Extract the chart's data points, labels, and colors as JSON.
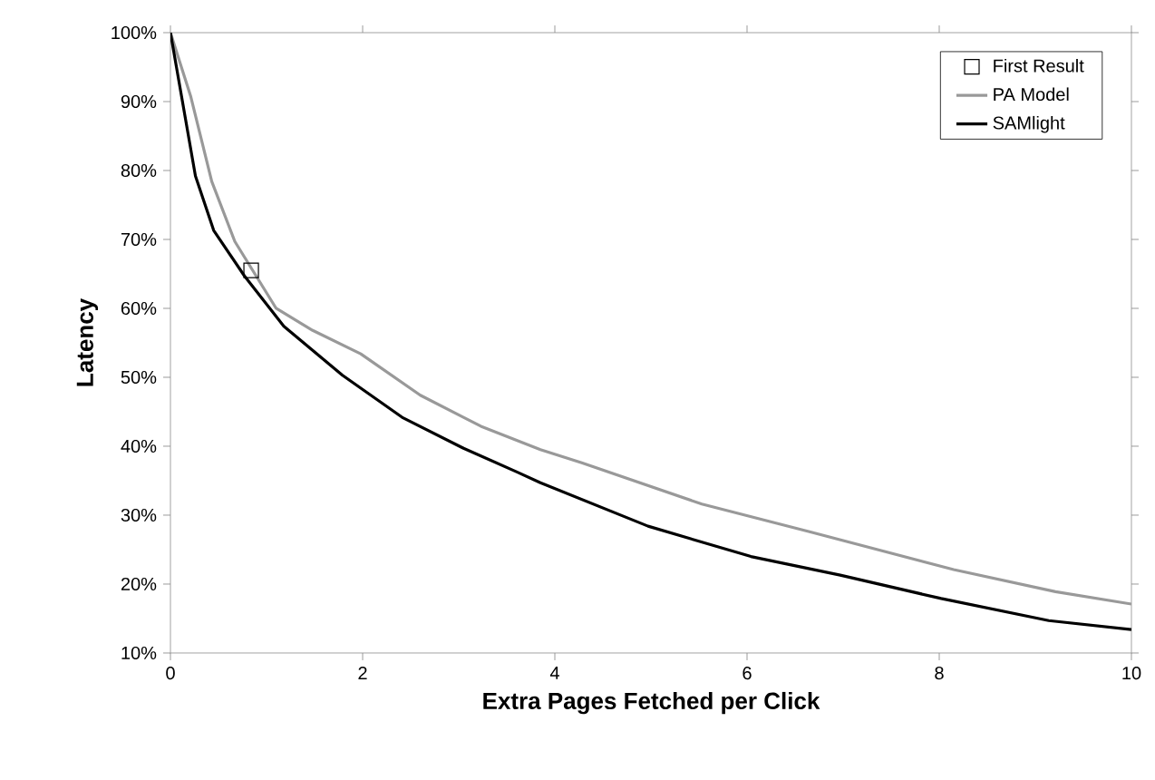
{
  "chart_data": {
    "type": "line",
    "xlabel": "Extra Pages Fetched per Click",
    "ylabel": "Latency",
    "xlim": [
      0,
      10
    ],
    "ylim": [
      10,
      100
    ],
    "xticks": [
      0,
      2,
      4,
      6,
      8,
      10
    ],
    "yticks": [
      {
        "value": 10,
        "label": "10%"
      },
      {
        "value": 20,
        "label": "20%"
      },
      {
        "value": 30,
        "label": "30%"
      },
      {
        "value": 40,
        "label": "40%"
      },
      {
        "value": 50,
        "label": "50%"
      },
      {
        "value": 60,
        "label": "60%"
      },
      {
        "value": 70,
        "label": "70%"
      },
      {
        "value": 80,
        "label": "80%"
      },
      {
        "value": 90,
        "label": "90%"
      },
      {
        "value": 100,
        "label": "100%"
      }
    ],
    "legend": "top right",
    "grid": false,
    "series": [
      {
        "name": "First Result",
        "type": "scatter",
        "marker": "square",
        "color": "#000000",
        "x": [
          0.84
        ],
        "values": [
          65.5
        ]
      },
      {
        "name": "PA Model",
        "color": "#999999",
        "x": [
          0,
          0.21,
          0.43,
          0.67,
          1.1,
          1.48,
          1.98,
          2.6,
          3.23,
          3.85,
          4.28,
          5.53,
          6.65,
          8.15,
          9.21,
          10
        ],
        "values": [
          100,
          90.8,
          78.4,
          69.7,
          60,
          56.8,
          53.4,
          47.4,
          42.9,
          39.5,
          37.6,
          31.6,
          27.6,
          22.1,
          18.9,
          17.1
        ]
      },
      {
        "name": "SAMlight",
        "color": "#000000",
        "x": [
          0,
          0.26,
          0.45,
          0.77,
          1.18,
          1.79,
          2.41,
          3.05,
          3.6,
          3.85,
          4.97,
          6.04,
          6.97,
          8.02,
          9.14,
          10
        ],
        "values": [
          100,
          79.2,
          71.3,
          64.7,
          57.4,
          50.3,
          44.2,
          39.7,
          36.3,
          34.7,
          28.4,
          24,
          21.3,
          17.9,
          14.7,
          13.4
        ]
      }
    ]
  }
}
